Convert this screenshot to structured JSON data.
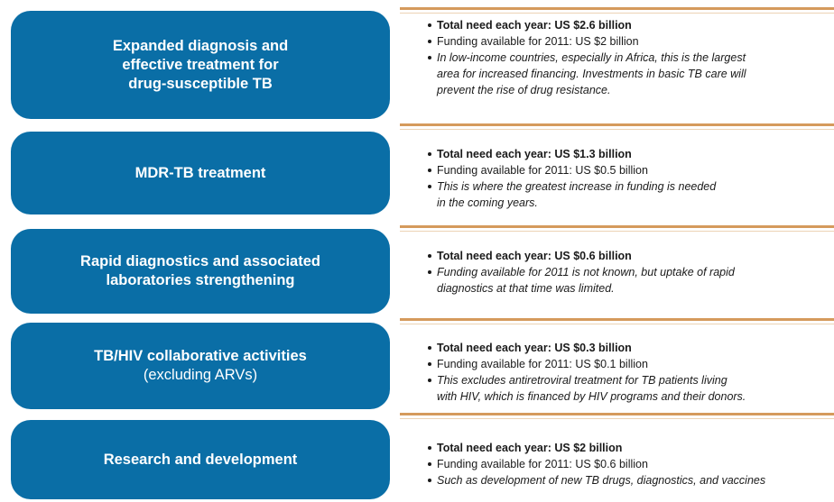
{
  "rows": [
    {
      "title": [
        "Expanded diagnosis and",
        "effective treatment for",
        "drug-susceptible TB"
      ],
      "bullets": [
        {
          "style": "bold",
          "text": [
            "Total need each year: US $2.6 billion"
          ]
        },
        {
          "style": "normal",
          "text": [
            "Funding available for 2011: US $2 billion"
          ]
        },
        {
          "style": "italic",
          "text": [
            "In low-income countries, especially in Africa, this is the largest",
            "area for increased financing. Investments in basic TB care will",
            "prevent the rise of drug resistance."
          ]
        }
      ]
    },
    {
      "title": [
        "MDR-TB treatment"
      ],
      "bullets": [
        {
          "style": "bold",
          "text": [
            "Total need each year: US $1.3 billion"
          ]
        },
        {
          "style": "normal",
          "text": [
            "Funding available for 2011: US $0.5 billion"
          ]
        },
        {
          "style": "italic",
          "text": [
            "This is where the greatest increase in funding is needed",
            "in the coming years."
          ]
        }
      ]
    },
    {
      "title": [
        "Rapid diagnostics and associated",
        "laboratories strengthening"
      ],
      "bullets": [
        {
          "style": "bold",
          "text": [
            "Total need each year: US $0.6 billion"
          ]
        },
        {
          "style": "italic",
          "text": [
            "Funding available for 2011 is not known, but uptake of rapid",
            "diagnostics at that time was limited."
          ]
        }
      ]
    },
    {
      "title": [
        "TB/HIV collaborative activities"
      ],
      "subtitle": "(excluding ARVs)",
      "bullets": [
        {
          "style": "bold",
          "text": [
            "Total need each year: US $0.3 billion"
          ]
        },
        {
          "style": "normal",
          "text": [
            "Funding available for 2011: US $0.1 billion"
          ]
        },
        {
          "style": "italic",
          "text": [
            "This excludes antiretroviral treatment for TB patients living",
            "with HIV, which is financed by HIV programs and their donors."
          ]
        }
      ]
    },
    {
      "title": [
        "Research and development"
      ],
      "bullets": [
        {
          "style": "bold",
          "text": [
            "Total need each year: US $2 billion"
          ]
        },
        {
          "style": "normal",
          "text": [
            "Funding available for 2011: US $0.6 billion"
          ]
        },
        {
          "style": "italic",
          "text": [
            "Such as development of new TB drugs, diagnostics, and vaccines"
          ]
        }
      ]
    }
  ]
}
